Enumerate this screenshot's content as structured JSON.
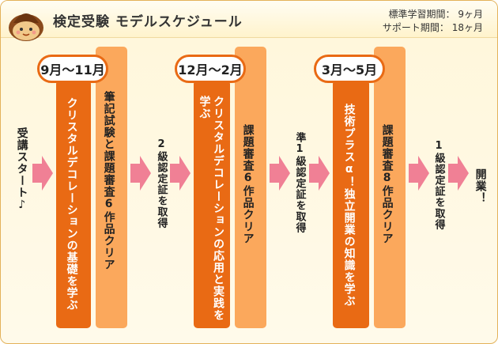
{
  "header": {
    "title": "検定受験 モデルスケジュール",
    "standard_period": "標準学習期間： 9ヶ月",
    "support_period": "サポート期間： 18ヶ月"
  },
  "start_label": "受講スタート♪",
  "phases": [
    {
      "period": "9月〜11月",
      "learn": "クリスタルデコレーションの基礎を学ぶ",
      "task": "筆記試験と課題審査6作品クリア",
      "result": "2級認定証を取得"
    },
    {
      "period": "12月〜2月",
      "learn_line1": "クリスタルデコレーションの",
      "learn_line2": "応用と実践を学ぶ",
      "task": "課題審査6作品クリア",
      "result": "準1級認定証を取得"
    },
    {
      "period": "3月〜5月",
      "learn_line1": "技術プラスα！独立開業の知識を学ぶ",
      "task": "課題審査8作品クリア",
      "result": "1級認定証を取得"
    }
  ],
  "final": "開業！",
  "colors": {
    "dark_orange": "#e96a14",
    "light_orange": "#fba85c",
    "arrow_pink": "#f08095"
  }
}
